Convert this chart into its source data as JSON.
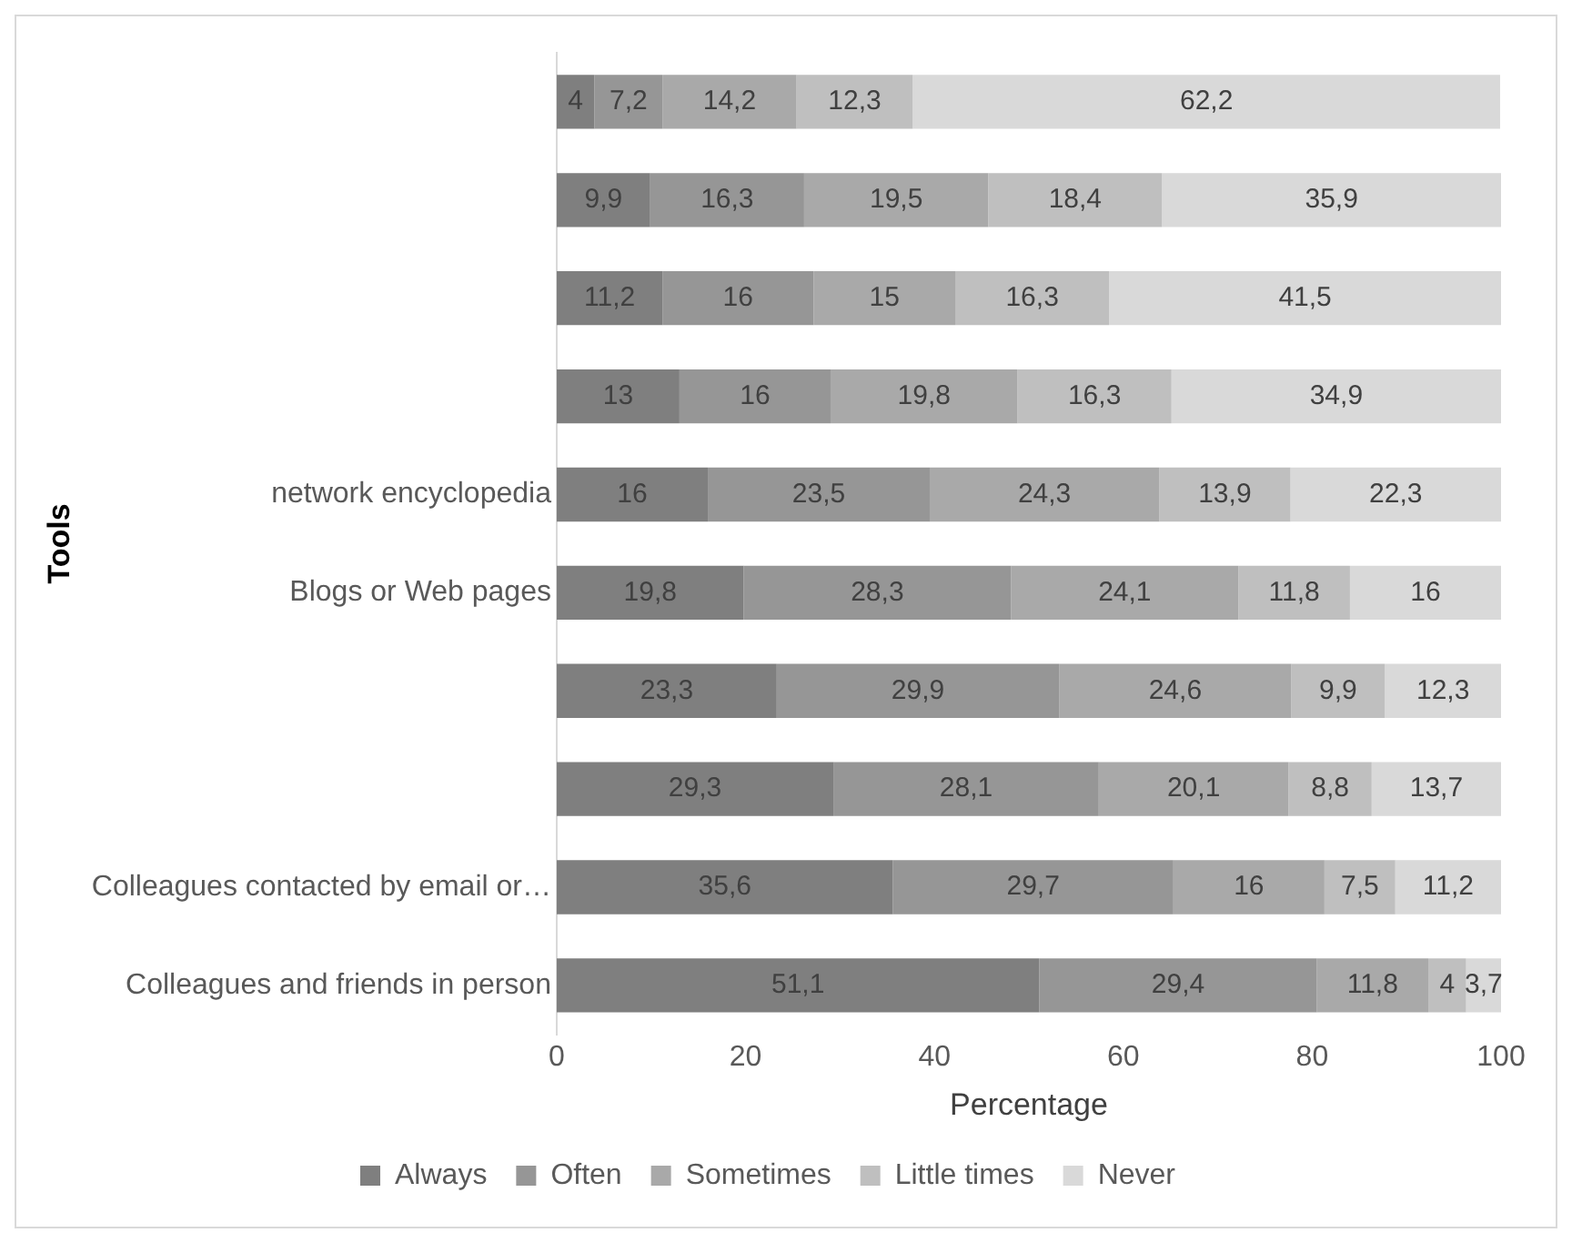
{
  "chart_data": {
    "type": "bar",
    "orientation": "horizontal",
    "stacked": true,
    "xlabel": "Percentage",
    "ylabel": "Tools",
    "categories": [
      null,
      null,
      null,
      null,
      "network encyclopedia",
      "Blogs or Web pages",
      null,
      null,
      "Colleagues contacted by email or…",
      "Colleagues and friends in person"
    ],
    "series": [
      {
        "name": "Always",
        "color": "#7f7f7f",
        "values": [
          4,
          9.9,
          11.2,
          13,
          16,
          19.8,
          23.3,
          29.3,
          35.6,
          51.1
        ],
        "value_labels": [
          "4",
          "9,9",
          "11,2",
          "13",
          "16",
          "19,8",
          "23,3",
          "29,3",
          "35,6",
          "51,1"
        ]
      },
      {
        "name": "Often",
        "color": "#969696",
        "values": [
          7.2,
          16.3,
          16,
          16,
          23.5,
          28.3,
          29.9,
          28.1,
          29.7,
          29.4
        ],
        "value_labels": [
          "7,2",
          "16,3",
          "16",
          "16",
          "23,5",
          "28,3",
          "29,9",
          "28,1",
          "29,7",
          "29,4"
        ]
      },
      {
        "name": "Sometimes",
        "color": "#a9a9a9",
        "values": [
          14.2,
          19.5,
          15,
          19.8,
          24.3,
          24.1,
          24.6,
          20.1,
          16,
          11.8
        ],
        "value_labels": [
          "14,2",
          "19,5",
          "15",
          "19,8",
          "24,3",
          "24,1",
          "24,6",
          "20,1",
          "16",
          "11,8"
        ]
      },
      {
        "name": "Little times",
        "color": "#bfbfbf",
        "values": [
          12.3,
          18.4,
          16.3,
          16.3,
          13.9,
          11.8,
          9.9,
          8.8,
          7.5,
          4
        ],
        "value_labels": [
          "12,3",
          "18,4",
          "16,3",
          "16,3",
          "13,9",
          "11,8",
          "9,9",
          "8,8",
          "7,5",
          "4"
        ]
      },
      {
        "name": "Never",
        "color": "#d9d9d9",
        "values": [
          62.2,
          35.9,
          41.5,
          34.9,
          22.3,
          16,
          12.3,
          13.7,
          11.2,
          3.7
        ],
        "value_labels": [
          "62,2",
          "35,9",
          "41,5",
          "34,9",
          "22,3",
          "16",
          "12,3",
          "13,7",
          "11,2",
          "3,7"
        ]
      }
    ],
    "xlim": [
      0,
      100
    ],
    "xticks": [
      0,
      20,
      40,
      60,
      80,
      100
    ],
    "grid": false,
    "legend": "bottom"
  }
}
